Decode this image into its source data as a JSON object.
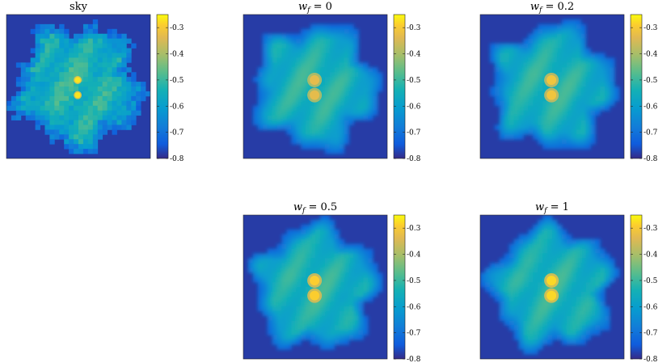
{
  "chart_data": {
    "type": "heatmap",
    "colormap": "parula",
    "panels": [
      {
        "title": "sky",
        "title_parts": [
          "sky"
        ],
        "texture": "pixelated",
        "colorbar": {
          "vmin": -0.8,
          "vmax": -0.25,
          "ticks": [
            "-0.3",
            "-0.4",
            "-0.5",
            "-0.6",
            "-0.7",
            "-0.8"
          ]
        },
        "peak_value": -0.27,
        "background_value": -0.78
      },
      {
        "title": "w_f = 0",
        "title_parts": [
          "w",
          "f",
          " = 0"
        ],
        "texture": "smooth",
        "colorbar": {
          "vmin": -0.8,
          "vmax": -0.25,
          "ticks": [
            "-0.3",
            "-0.4",
            "-0.5",
            "-0.6",
            "-0.7",
            "-0.8"
          ]
        },
        "peak_value": -0.33,
        "background_value": -0.78
      },
      {
        "title": "w_f = 0.2",
        "title_parts": [
          "w",
          "f",
          " = 0.2"
        ],
        "texture": "smooth",
        "colorbar": {
          "vmin": -0.8,
          "vmax": -0.25,
          "ticks": [
            "-0.3",
            "-0.4",
            "-0.5",
            "-0.6",
            "-0.7",
            "-0.8"
          ]
        },
        "peak_value": -0.31,
        "background_value": -0.78
      },
      {
        "title": "w_f = 0.5",
        "title_parts": [
          "w",
          "f",
          " = 0.5"
        ],
        "texture": "smooth",
        "colorbar": {
          "vmin": -0.8,
          "vmax": -0.25,
          "ticks": [
            "-0.3",
            "-0.4",
            "-0.5",
            "-0.6",
            "-0.7",
            "-0.8"
          ]
        },
        "peak_value": -0.29,
        "background_value": -0.78
      },
      {
        "title": "w_f = 1",
        "title_parts": [
          "w",
          "f",
          " = 1"
        ],
        "texture": "smooth",
        "colorbar": {
          "vmin": -0.8,
          "vmax": -0.25,
          "ticks": [
            "-0.3",
            "-0.4",
            "-0.5",
            "-0.6",
            "-0.7",
            "-0.8"
          ]
        },
        "peak_value": -0.28,
        "background_value": -0.78
      }
    ]
  }
}
